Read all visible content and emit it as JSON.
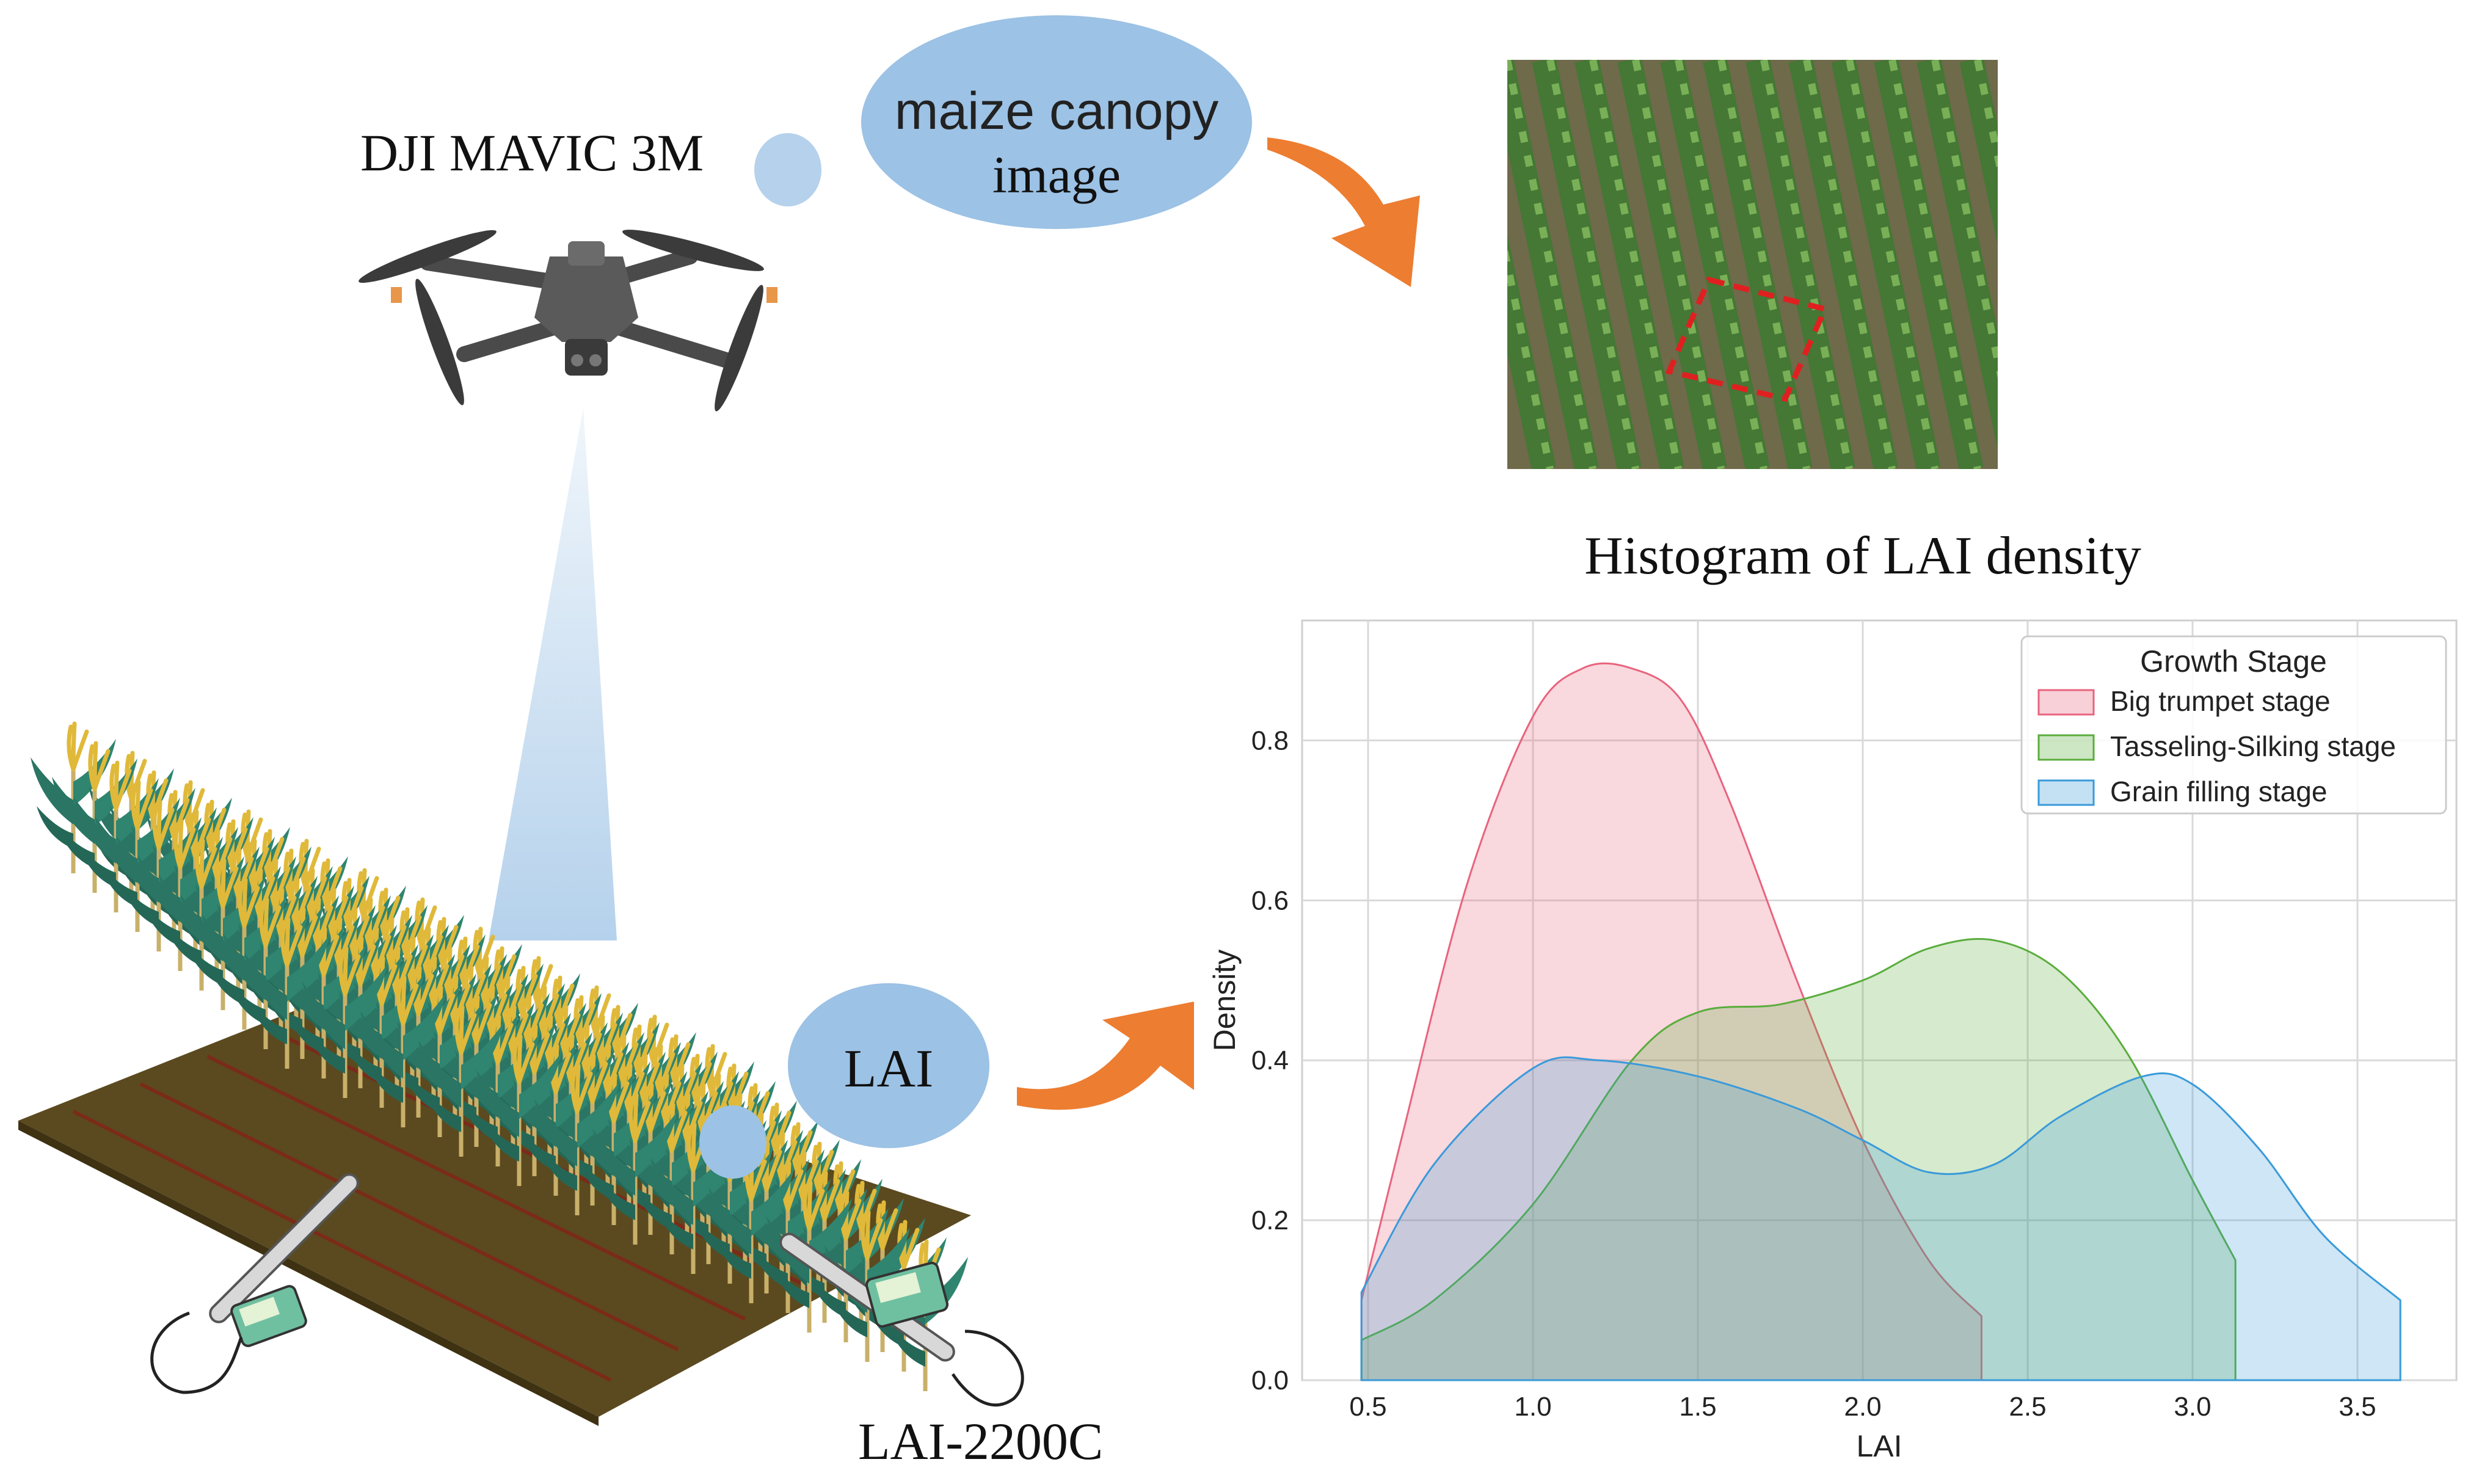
{
  "drone": {
    "label": "DJI MAVIC 3M"
  },
  "image_bubble": {
    "line1": "maize canopy",
    "line2": "image"
  },
  "lai_bubble": {
    "label": "LAI"
  },
  "meter": {
    "label": "LAI-2200C"
  },
  "colors": {
    "bubble": "#9cc2e5",
    "arrow": "#ed7d31",
    "big_trumpet": "#e8647d",
    "tasseling": "#5aad3c",
    "grain": "#3a9ad9",
    "soil": "#5b4a1f"
  },
  "icons": [
    "drone-icon",
    "lai-meter-icon",
    "maize-field-illustration",
    "curved-arrow-icon"
  ],
  "histogram": {
    "title": "Histogram of LAI density"
  },
  "chart_data": {
    "type": "area",
    "title": "",
    "xlabel": "LAI",
    "ylabel": "Density",
    "xlim": [
      0.3,
      3.8
    ],
    "ylim": [
      0.0,
      0.95
    ],
    "xticks": [
      "0.5",
      "1.0",
      "1.5",
      "2.0",
      "2.5",
      "3.0",
      "3.5"
    ],
    "xtick_values": [
      0.5,
      1.0,
      1.5,
      2.0,
      2.5,
      3.0,
      3.5
    ],
    "yticks": [
      "0.0",
      "0.2",
      "0.4",
      "0.6",
      "0.8"
    ],
    "ytick_values": [
      0.0,
      0.2,
      0.4,
      0.6,
      0.8
    ],
    "grid": true,
    "legend": {
      "title": "Growth Stage",
      "placement": "top-right"
    },
    "series": [
      {
        "name": "Big trumpet stage",
        "color": "#e8647d",
        "x": [
          0.48,
          0.6,
          0.8,
          1.0,
          1.15,
          1.3,
          1.45,
          1.6,
          1.8,
          2.0,
          2.2,
          2.36,
          2.36
        ],
        "y": [
          0.1,
          0.3,
          0.62,
          0.83,
          0.89,
          0.89,
          0.85,
          0.72,
          0.5,
          0.3,
          0.15,
          0.08,
          0.0
        ]
      },
      {
        "name": "Tasseling-Silking stage",
        "color": "#5aad3c",
        "x": [
          0.48,
          0.7,
          1.0,
          1.3,
          1.5,
          1.75,
          2.0,
          2.2,
          2.4,
          2.6,
          2.8,
          3.0,
          3.13,
          3.13
        ],
        "y": [
          0.05,
          0.1,
          0.22,
          0.4,
          0.46,
          0.47,
          0.5,
          0.54,
          0.55,
          0.51,
          0.41,
          0.25,
          0.15,
          0.0
        ]
      },
      {
        "name": "Grain filling stage",
        "color": "#3a9ad9",
        "x": [
          0.48,
          0.7,
          1.0,
          1.2,
          1.5,
          1.8,
          2.0,
          2.2,
          2.4,
          2.6,
          2.85,
          3.0,
          3.2,
          3.4,
          3.63,
          3.63
        ],
        "y": [
          0.11,
          0.27,
          0.39,
          0.4,
          0.38,
          0.34,
          0.3,
          0.26,
          0.27,
          0.33,
          0.38,
          0.37,
          0.29,
          0.18,
          0.1,
          0.0
        ]
      }
    ]
  }
}
